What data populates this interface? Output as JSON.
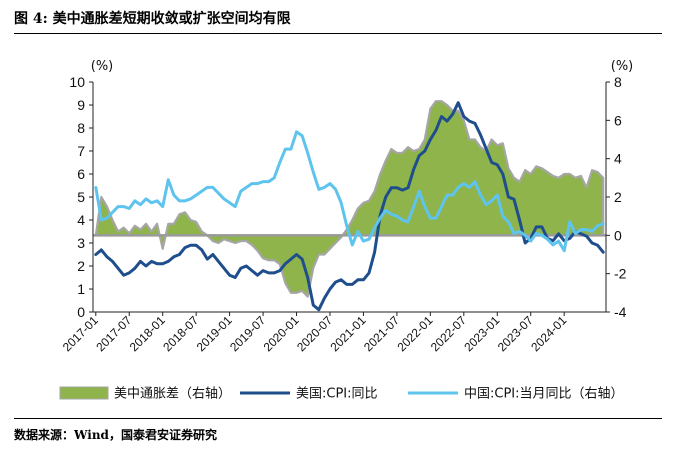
{
  "figure": {
    "title": "图 4:  美中通胀差短期收敛或扩张空间均有限",
    "source": "数据来源：Wind，国泰君安证券研究"
  },
  "chart_data": {
    "type": "line",
    "left_unit": "(%)",
    "right_unit": "(%)",
    "left_ylim": [
      0,
      10
    ],
    "right_ylim": [
      -4,
      8
    ],
    "left_ticks": [
      "0",
      "1",
      "2",
      "3",
      "4",
      "5",
      "6",
      "7",
      "8",
      "9",
      "10"
    ],
    "right_ticks": [
      "-4",
      "-2",
      "0",
      "2",
      "4",
      "6",
      "8"
    ],
    "x_ticks": [
      "2017-01",
      "2017-07",
      "2018-01",
      "2018-07",
      "2019-01",
      "2019-07",
      "2020-01",
      "2020-07",
      "2021-01",
      "2021-07",
      "2022-01",
      "2022-07",
      "2023-01",
      "2023-07",
      "2024-01"
    ],
    "x_start": "2017-01",
    "series": [
      {
        "name": "美中通胀差（右轴）",
        "axis": "right",
        "kind": "area",
        "color": "#8fb44b",
        "edge_color": "#a6a6a6",
        "values": [
          0.0,
          2.0,
          1.5,
          0.8,
          0.2,
          0.4,
          0.1,
          0.5,
          0.3,
          0.6,
          0.2,
          0.6,
          -0.7,
          0.6,
          0.6,
          1.1,
          1.2,
          0.8,
          0.7,
          0.2,
          0.0,
          -0.3,
          -0.4,
          -0.2,
          -0.3,
          -0.4,
          -0.3,
          -0.3,
          -0.5,
          -0.8,
          -1.2,
          -1.3,
          -1.3,
          -1.5,
          -2.5,
          -3.0,
          -3.0,
          -2.9,
          -3.2,
          -1.7,
          -1.0,
          -1.0,
          -0.7,
          -0.4,
          -0.1,
          0.3,
          0.8,
          1.4,
          1.7,
          1.8,
          2.3,
          3.2,
          3.9,
          4.5,
          4.3,
          4.3,
          4.6,
          4.4,
          4.5,
          5.0,
          6.6,
          7.0,
          7.0,
          6.8,
          6.5,
          6.5,
          6.0,
          5.0,
          5.0,
          4.6,
          4.4,
          5.0,
          4.7,
          4.8,
          3.5,
          3.0,
          2.8,
          3.4,
          3.2,
          3.6,
          3.5,
          3.3,
          3.1,
          3.0,
          3.2,
          3.2,
          3.0,
          3.1,
          2.5,
          3.4,
          3.3,
          3.0
        ]
      },
      {
        "name": "美国:CPI:同比",
        "axis": "left",
        "kind": "line",
        "color": "#1f4e8c",
        "values": [
          2.5,
          2.7,
          2.4,
          2.2,
          1.9,
          1.6,
          1.7,
          1.9,
          2.2,
          2.0,
          2.2,
          2.1,
          2.1,
          2.2,
          2.4,
          2.5,
          2.8,
          2.9,
          2.9,
          2.7,
          2.3,
          2.5,
          2.2,
          1.9,
          1.6,
          1.5,
          1.9,
          2.0,
          1.8,
          1.6,
          1.8,
          1.7,
          1.7,
          1.8,
          2.1,
          2.3,
          2.5,
          2.3,
          1.5,
          0.3,
          0.1,
          0.6,
          1.0,
          1.3,
          1.4,
          1.2,
          1.2,
          1.4,
          1.4,
          1.7,
          2.6,
          4.2,
          5.0,
          5.4,
          5.4,
          5.3,
          5.4,
          6.2,
          6.8,
          7.0,
          7.5,
          7.9,
          8.5,
          8.3,
          8.6,
          9.1,
          8.5,
          8.3,
          8.2,
          7.7,
          7.1,
          6.5,
          6.4,
          6.0,
          5.0,
          4.9,
          4.0,
          3.0,
          3.2,
          3.7,
          3.7,
          3.2,
          3.1,
          3.4,
          3.1,
          3.2,
          3.5,
          3.4,
          3.3,
          3.0,
          2.9,
          2.6
        ]
      },
      {
        "name": "中国:CPI:当月同比（右轴）",
        "axis": "right",
        "kind": "line",
        "color": "#5ec4ee",
        "values": [
          2.5,
          0.8,
          0.9,
          1.2,
          1.5,
          1.5,
          1.4,
          1.8,
          1.6,
          1.9,
          1.7,
          1.8,
          1.5,
          2.9,
          2.1,
          1.8,
          1.8,
          1.9,
          2.1,
          2.3,
          2.5,
          2.5,
          2.2,
          1.9,
          1.7,
          1.5,
          2.3,
          2.5,
          2.7,
          2.7,
          2.8,
          2.8,
          3.0,
          3.8,
          4.5,
          4.5,
          5.4,
          5.2,
          4.3,
          3.3,
          2.4,
          2.5,
          2.7,
          2.4,
          1.7,
          0.5,
          -0.5,
          0.2,
          -0.3,
          -0.2,
          0.4,
          0.9,
          1.3,
          1.1,
          1.0,
          0.8,
          0.7,
          1.5,
          2.3,
          1.5,
          0.9,
          0.9,
          1.5,
          2.1,
          2.1,
          2.5,
          2.7,
          2.5,
          2.8,
          2.1,
          1.6,
          1.8,
          2.1,
          1.0,
          0.7,
          0.1,
          0.2,
          0.0,
          -0.3,
          0.1,
          0.0,
          -0.2,
          -0.5,
          -0.3,
          -0.8,
          0.7,
          0.1,
          0.3,
          0.3,
          0.2,
          0.5,
          0.6
        ]
      }
    ],
    "legend_position": "bottom",
    "grid": false
  }
}
